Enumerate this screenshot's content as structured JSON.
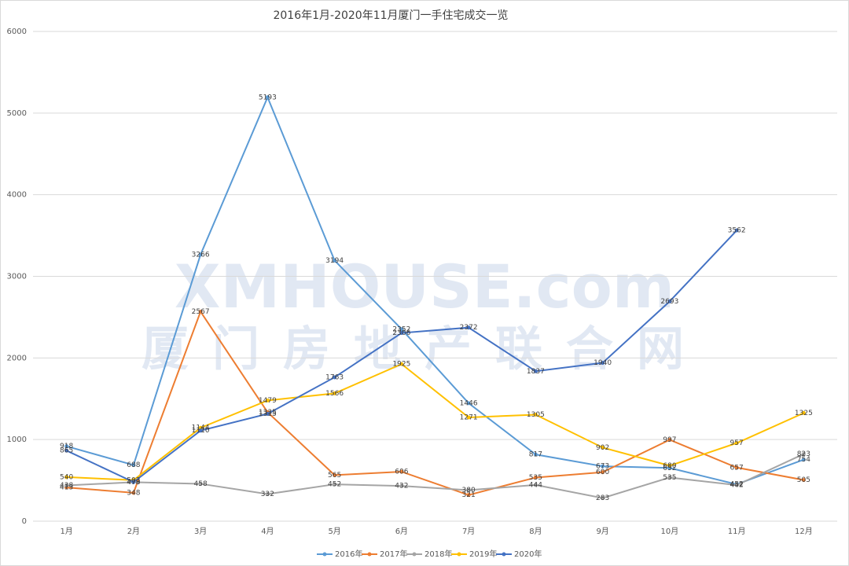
{
  "chart_data": {
    "type": "line",
    "title": "2016年1月-2020年11月厦门一手住宅成交一览",
    "categories": [
      "1月",
      "2月",
      "3月",
      "4月",
      "5月",
      "6月",
      "7月",
      "8月",
      "9月",
      "10月",
      "11月",
      "12月"
    ],
    "ylim": [
      0,
      6000
    ],
    "yticks": [
      0,
      1000,
      2000,
      3000,
      4000,
      5000,
      6000
    ],
    "grid": true,
    "legend": "bottom",
    "series": [
      {
        "name": "2016年",
        "color": "#5b9bd5",
        "values": [
          918,
          688,
          3266,
          5193,
          3194,
          2352,
          1446,
          817,
          673,
          652,
          452,
          754
        ]
      },
      {
        "name": "2017年",
        "color": "#ed7d31",
        "values": [
          413,
          348,
          2567,
          1335,
          565,
          606,
          321,
          535,
          600,
          997,
          657,
          505
        ]
      },
      {
        "name": "2018年",
        "color": "#a5a5a5",
        "values": [
          438,
          478,
          458,
          332,
          452,
          432,
          380,
          444,
          283,
          535,
          442,
          823
        ]
      },
      {
        "name": "2019年",
        "color": "#ffc000",
        "values": [
          540,
          503,
          1144,
          1479,
          1566,
          1925,
          1271,
          1305,
          902,
          680,
          957,
          1325
        ]
      },
      {
        "name": "2020年",
        "color": "#4472c4",
        "values": [
          865,
          479,
          1110,
          1315,
          1763,
          2306,
          2372,
          1837,
          1940,
          2693,
          3562,
          null
        ]
      }
    ]
  },
  "watermark": {
    "text": "XMHOUSE.com",
    "subtext": "厦门房地产联合网"
  }
}
